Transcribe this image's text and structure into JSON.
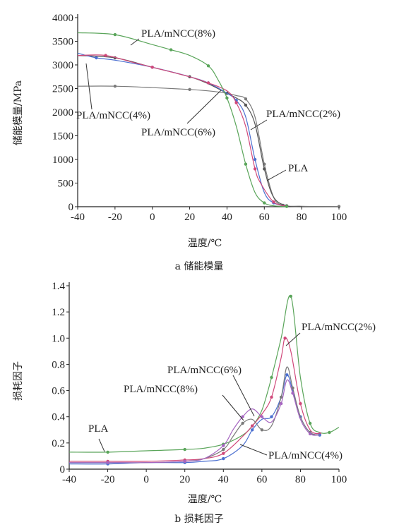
{
  "chart_data": [
    {
      "type": "line",
      "caption": "a 储能模量",
      "xlabel": "温度/℃",
      "ylabel": "储能模量/MPa",
      "xlim": [
        -40,
        100
      ],
      "ylim": [
        0,
        4000
      ],
      "xticks": [
        "-40",
        "-20",
        "0",
        "20",
        "40",
        "60",
        "80",
        "100"
      ],
      "yticks": [
        "0",
        "500",
        "1000",
        "1500",
        "2000",
        "2500",
        "3000",
        "3500",
        "4000"
      ],
      "series": [
        {
          "name": "PLA",
          "color": "#7a7a7a",
          "x": [
            -40,
            -20,
            0,
            20,
            30,
            40,
            45,
            50,
            55,
            60,
            65,
            70,
            80,
            100
          ],
          "y": [
            2550,
            2550,
            2520,
            2480,
            2450,
            2400,
            2350,
            2280,
            1900,
            900,
            200,
            30,
            10,
            5
          ]
        },
        {
          "name": "PLA/mNCC(2%)",
          "color": "#555555",
          "x": [
            -40,
            -20,
            0,
            20,
            30,
            40,
            45,
            50,
            55,
            60,
            65,
            72,
            80
          ],
          "y": [
            3200,
            3150,
            2950,
            2750,
            2600,
            2400,
            2300,
            2150,
            1750,
            800,
            200,
            20,
            5
          ]
        },
        {
          "name": "PLA/mNCC(4%)",
          "color": "#4a6fd0",
          "x": [
            -40,
            -30,
            -20,
            0,
            20,
            30,
            40,
            45,
            50,
            55,
            60,
            65,
            72
          ],
          "y": [
            3250,
            3150,
            3100,
            2950,
            2750,
            2620,
            2400,
            2250,
            1900,
            1000,
            300,
            80,
            10
          ]
        },
        {
          "name": "PLA/mNCC(6%)",
          "color": "#d0487a",
          "x": [
            -40,
            -25,
            -10,
            0,
            20,
            30,
            40,
            45,
            50,
            55,
            58,
            65,
            72
          ],
          "y": [
            3200,
            3200,
            3050,
            2950,
            2750,
            2620,
            2450,
            2200,
            1700,
            800,
            500,
            100,
            10
          ]
        },
        {
          "name": "PLA/mNCC(8%)",
          "color": "#5aa55a",
          "x": [
            -40,
            -20,
            0,
            10,
            20,
            30,
            35,
            40,
            45,
            50,
            55,
            60,
            65,
            72
          ],
          "y": [
            3680,
            3640,
            3430,
            3320,
            3200,
            2980,
            2700,
            2300,
            1700,
            900,
            300,
            80,
            20,
            5
          ]
        }
      ],
      "annotations": [
        "PLA/mNCC(8%)",
        "PLA/mNCC(4%)",
        "PLA/mNCC(6%)",
        "PLA/mNCC(2%)",
        "PLA"
      ]
    },
    {
      "type": "line",
      "caption": "b 损耗因子",
      "xlabel": "温度/℃",
      "ylabel": "损耗因子",
      "xlim": [
        -40,
        100
      ],
      "ylim": [
        0,
        1.4
      ],
      "xticks": [
        "-40",
        "-20",
        "0",
        "20",
        "40",
        "60",
        "80",
        "100"
      ],
      "yticks": [
        "0",
        "0.2",
        "0.4",
        "0.6",
        "0.8",
        "1.0",
        "1.2",
        "1.4"
      ],
      "series": [
        {
          "name": "PLA",
          "color": "#5aa55a",
          "x": [
            -40,
            -20,
            0,
            20,
            30,
            40,
            50,
            55,
            60,
            65,
            70,
            75,
            80,
            85,
            90,
            95,
            100
          ],
          "y": [
            0.13,
            0.13,
            0.14,
            0.15,
            0.16,
            0.19,
            0.26,
            0.33,
            0.45,
            0.7,
            1.0,
            1.32,
            0.7,
            0.35,
            0.28,
            0.28,
            0.32
          ]
        },
        {
          "name": "PLA/mNCC(2%)",
          "color": "#d0487a",
          "x": [
            -40,
            -20,
            0,
            20,
            30,
            40,
            50,
            55,
            60,
            65,
            70,
            72,
            75,
            80,
            85,
            90
          ],
          "y": [
            0.06,
            0.06,
            0.06,
            0.07,
            0.08,
            0.12,
            0.25,
            0.33,
            0.42,
            0.55,
            0.85,
            1.0,
            0.9,
            0.5,
            0.3,
            0.27
          ]
        },
        {
          "name": "PLA/mNCC(4%)",
          "color": "#4a6fd0",
          "x": [
            -40,
            -20,
            0,
            20,
            30,
            40,
            50,
            55,
            60,
            65,
            70,
            73,
            76,
            80,
            85,
            90
          ],
          "y": [
            0.04,
            0.04,
            0.05,
            0.05,
            0.06,
            0.08,
            0.18,
            0.3,
            0.38,
            0.4,
            0.55,
            0.72,
            0.6,
            0.4,
            0.28,
            0.26
          ]
        },
        {
          "name": "PLA/mNCC(6%)",
          "color": "#7a7a7a",
          "x": [
            -40,
            -20,
            0,
            20,
            30,
            40,
            45,
            50,
            55,
            60,
            65,
            70,
            73,
            76,
            80,
            85,
            90
          ],
          "y": [
            0.05,
            0.05,
            0.05,
            0.06,
            0.08,
            0.15,
            0.25,
            0.35,
            0.38,
            0.3,
            0.33,
            0.55,
            0.78,
            0.62,
            0.4,
            0.28,
            0.26
          ]
        },
        {
          "name": "PLA/mNCC(8%)",
          "color": "#a565c0",
          "x": [
            -40,
            -20,
            0,
            20,
            30,
            40,
            45,
            50,
            55,
            60,
            65,
            70,
            73,
            76,
            80,
            85,
            90
          ],
          "y": [
            0.05,
            0.05,
            0.05,
            0.06,
            0.08,
            0.18,
            0.3,
            0.4,
            0.46,
            0.4,
            0.36,
            0.5,
            0.68,
            0.58,
            0.38,
            0.27,
            0.26
          ]
        }
      ],
      "annotations": [
        "PLA/mNCC(2%)",
        "PLA/mNCC(6%)",
        "PLA/mNCC(8%)",
        "PLA",
        "PLA/mNCC(4%)"
      ]
    }
  ]
}
